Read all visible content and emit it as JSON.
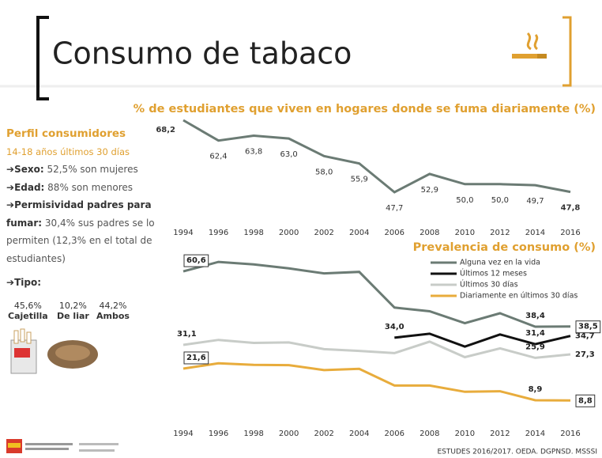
{
  "header": {
    "title": "Consumo de tabaco"
  },
  "sidebar": {
    "title": "Perfil consumidores",
    "subtitle": "14-18 años últimos 30 días",
    "items": [
      {
        "label": "Sexo:",
        "text": "52,5% son mujeres"
      },
      {
        "label": "Edad:",
        "text": "88% son menores"
      },
      {
        "label": "Permisividad padres para fumar:",
        "text": "30,4% sus padres se lo permiten (12,3% en el total de estudiantes)"
      },
      {
        "label": "Tipo:"
      }
    ],
    "tipo": [
      {
        "value": "45,6%",
        "label": "Cajetilla"
      },
      {
        "value": "10,2%",
        "label": "De liar"
      },
      {
        "value": "44,2%",
        "label": "Ambos"
      }
    ]
  },
  "footer": {
    "source": "ESTUDES 2016/2017. OEDA. DGPNSD. MSSSI"
  },
  "chart_data": [
    {
      "type": "line",
      "title": "% de estudiantes que viven en hogares donde se fuma diariamente (%)",
      "categories": [
        "1994",
        "1996",
        "1998",
        "2000",
        "2002",
        "2004",
        "2006",
        "2008",
        "2010",
        "2012",
        "2014",
        "2016"
      ],
      "color": "#6b7b74",
      "values": [
        68.2,
        62.4,
        63.8,
        63.0,
        58.0,
        55.9,
        47.7,
        52.9,
        50.0,
        50.0,
        49.7,
        47.8
      ],
      "value_labels": [
        "68,2",
        "62,4",
        "63,8",
        "63,0",
        "58,0",
        "55,9",
        "47,7",
        "52,9",
        "50,0",
        "50,0",
        "49,7",
        "47,8"
      ]
    },
    {
      "type": "line",
      "title": "Prevalencia de consumo (%)",
      "categories": [
        "1994",
        "1996",
        "1998",
        "2000",
        "2002",
        "2004",
        "2006",
        "2008",
        "2010",
        "2012",
        "2014",
        "2016"
      ],
      "series": [
        {
          "name": "Alguna vez en la vida",
          "color": "#6b7b74",
          "values": [
            60.6,
            64.4,
            63.4,
            61.8,
            59.8,
            60.4,
            46.1,
            44.6,
            39.8,
            43.8,
            38.4,
            38.5
          ],
          "value_labels": [
            "60,6",
            null,
            null,
            null,
            null,
            null,
            null,
            null,
            null,
            null,
            "38,4",
            "38,5"
          ]
        },
        {
          "name": "Últimos 12 meses",
          "color": "#111111",
          "values": [
            null,
            null,
            null,
            null,
            null,
            null,
            34.0,
            35.6,
            30.4,
            35.3,
            31.4,
            34.7
          ],
          "value_labels": [
            null,
            null,
            null,
            null,
            null,
            null,
            "34,0",
            null,
            null,
            null,
            "31,4",
            "34,7"
          ]
        },
        {
          "name": "Últimos 30 días",
          "color": "#c8ccc8",
          "values": [
            31.1,
            33.1,
            31.9,
            32.1,
            29.4,
            28.7,
            27.8,
            32.4,
            26.2,
            29.7,
            25.9,
            27.3
          ],
          "value_labels": [
            "31,1",
            null,
            null,
            null,
            null,
            null,
            null,
            null,
            null,
            null,
            "25,9",
            "27,3"
          ]
        },
        {
          "name": "Diariamente en últimos 30 días",
          "color": "#e8ac3c",
          "values": [
            21.6,
            23.7,
            23.1,
            23.0,
            21.0,
            21.5,
            14.8,
            14.8,
            12.3,
            12.5,
            8.9,
            8.8
          ],
          "value_labels": [
            "21,6",
            null,
            null,
            null,
            null,
            null,
            null,
            null,
            null,
            null,
            "8,9",
            "8,8"
          ]
        }
      ]
    }
  ]
}
